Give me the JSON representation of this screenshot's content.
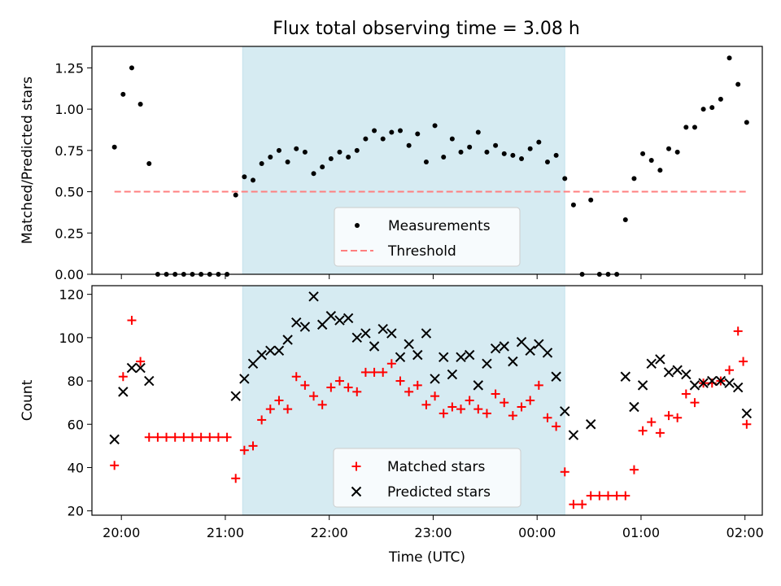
{
  "title": "Flux total observing time = 3.08 h",
  "colors": {
    "band": "#add8e6",
    "measurement": "#000000",
    "threshold": "#ff7f7f",
    "matched": "#ff0000",
    "predicted": "#000000"
  },
  "chart_data": [
    {
      "type": "scatter",
      "ylabel": "Matched/Predicted stars",
      "ylim": [
        0,
        1.38
      ],
      "y_ticks": [
        0.0,
        0.25,
        0.5,
        0.75,
        1.0,
        1.25
      ],
      "y_tick_labels": [
        "0.00",
        "0.25",
        "0.50",
        "0.75",
        "1.00",
        "1.25"
      ],
      "xlim": [
        "19:43",
        "02:10"
      ],
      "shaded_span": [
        "21:10",
        "00:16"
      ],
      "legend_position": "lower center",
      "threshold": 0.5,
      "threshold_span": [
        "19:56",
        "02:02"
      ],
      "series": [
        {
          "name": "Measurements",
          "marker": "dot",
          "points": [
            [
              "19:56",
              0.77
            ],
            [
              "20:01",
              1.09
            ],
            [
              "20:06",
              1.25
            ],
            [
              "20:11",
              1.03
            ],
            [
              "20:16",
              0.67
            ],
            [
              "20:21",
              0.0
            ],
            [
              "20:26",
              0.0
            ],
            [
              "20:31",
              0.0
            ],
            [
              "20:36",
              0.0
            ],
            [
              "20:41",
              0.0
            ],
            [
              "20:46",
              0.0
            ],
            [
              "20:51",
              0.0
            ],
            [
              "20:56",
              0.0
            ],
            [
              "21:01",
              0.0
            ],
            [
              "21:06",
              0.48
            ],
            [
              "21:11",
              0.59
            ],
            [
              "21:16",
              0.57
            ],
            [
              "21:21",
              0.67
            ],
            [
              "21:26",
              0.71
            ],
            [
              "21:31",
              0.75
            ],
            [
              "21:36",
              0.68
            ],
            [
              "21:41",
              0.76
            ],
            [
              "21:46",
              0.74
            ],
            [
              "21:51",
              0.61
            ],
            [
              "21:56",
              0.65
            ],
            [
              "22:01",
              0.7
            ],
            [
              "22:06",
              0.74
            ],
            [
              "22:11",
              0.71
            ],
            [
              "22:16",
              0.75
            ],
            [
              "22:21",
              0.82
            ],
            [
              "22:26",
              0.87
            ],
            [
              "22:31",
              0.82
            ],
            [
              "22:36",
              0.86
            ],
            [
              "22:41",
              0.87
            ],
            [
              "22:46",
              0.78
            ],
            [
              "22:51",
              0.85
            ],
            [
              "22:56",
              0.68
            ],
            [
              "23:01",
              0.9
            ],
            [
              "23:06",
              0.71
            ],
            [
              "23:11",
              0.82
            ],
            [
              "23:16",
              0.74
            ],
            [
              "23:21",
              0.77
            ],
            [
              "23:26",
              0.86
            ],
            [
              "23:31",
              0.74
            ],
            [
              "23:36",
              0.78
            ],
            [
              "23:41",
              0.73
            ],
            [
              "23:46",
              0.72
            ],
            [
              "23:51",
              0.7
            ],
            [
              "23:56",
              0.76
            ],
            [
              "00:01",
              0.8
            ],
            [
              "00:06",
              0.68
            ],
            [
              "00:11",
              0.72
            ],
            [
              "00:16",
              0.58
            ],
            [
              "00:21",
              0.42
            ],
            [
              "00:26",
              0.0
            ],
            [
              "00:31",
              0.45
            ],
            [
              "00:36",
              0.0
            ],
            [
              "00:41",
              0.0
            ],
            [
              "00:46",
              0.0
            ],
            [
              "00:51",
              0.33
            ],
            [
              "00:56",
              0.58
            ],
            [
              "01:01",
              0.73
            ],
            [
              "01:06",
              0.69
            ],
            [
              "01:11",
              0.63
            ],
            [
              "01:16",
              0.76
            ],
            [
              "01:21",
              0.74
            ],
            [
              "01:26",
              0.89
            ],
            [
              "01:31",
              0.89
            ],
            [
              "01:36",
              1.0
            ],
            [
              "01:41",
              1.01
            ],
            [
              "01:46",
              1.06
            ],
            [
              "01:51",
              1.31
            ],
            [
              "01:56",
              1.15
            ],
            [
              "02:01",
              0.92
            ]
          ]
        },
        {
          "name": "Threshold",
          "marker": "dashed-line"
        }
      ]
    },
    {
      "type": "scatter",
      "xlabel": "Time (UTC)",
      "ylabel": "Count",
      "ylim": [
        18,
        124
      ],
      "y_ticks": [
        20,
        40,
        60,
        80,
        100,
        120
      ],
      "y_tick_labels": [
        "20",
        "40",
        "60",
        "80",
        "100",
        "120"
      ],
      "x_ticks": [
        "20:00",
        "21:00",
        "22:00",
        "23:00",
        "00:00",
        "01:00",
        "02:00"
      ],
      "xlim": [
        "19:43",
        "02:10"
      ],
      "shaded_span": [
        "21:10",
        "00:16"
      ],
      "legend_position": "lower center",
      "series": [
        {
          "name": "Matched stars",
          "marker": "plus",
          "points": [
            [
              "19:56",
              41
            ],
            [
              "20:01",
              82
            ],
            [
              "20:06",
              108
            ],
            [
              "20:11",
              89
            ],
            [
              "20:16",
              54
            ],
            [
              "20:21",
              54
            ],
            [
              "20:26",
              54
            ],
            [
              "20:31",
              54
            ],
            [
              "20:36",
              54
            ],
            [
              "20:41",
              54
            ],
            [
              "20:46",
              54
            ],
            [
              "20:51",
              54
            ],
            [
              "20:56",
              54
            ],
            [
              "21:01",
              54
            ],
            [
              "21:06",
              35
            ],
            [
              "21:11",
              48
            ],
            [
              "21:16",
              50
            ],
            [
              "21:21",
              62
            ],
            [
              "21:26",
              67
            ],
            [
              "21:31",
              71
            ],
            [
              "21:36",
              67
            ],
            [
              "21:41",
              82
            ],
            [
              "21:46",
              78
            ],
            [
              "21:51",
              73
            ],
            [
              "21:56",
              69
            ],
            [
              "22:01",
              77
            ],
            [
              "22:06",
              80
            ],
            [
              "22:11",
              77
            ],
            [
              "22:16",
              75
            ],
            [
              "22:21",
              84
            ],
            [
              "22:26",
              84
            ],
            [
              "22:31",
              84
            ],
            [
              "22:36",
              88
            ],
            [
              "22:41",
              80
            ],
            [
              "22:46",
              75
            ],
            [
              "22:51",
              78
            ],
            [
              "22:56",
              69
            ],
            [
              "23:01",
              73
            ],
            [
              "23:06",
              65
            ],
            [
              "23:11",
              68
            ],
            [
              "23:16",
              67
            ],
            [
              "23:21",
              71
            ],
            [
              "23:26",
              67
            ],
            [
              "23:31",
              65
            ],
            [
              "23:36",
              74
            ],
            [
              "23:41",
              70
            ],
            [
              "23:46",
              64
            ],
            [
              "23:51",
              68
            ],
            [
              "23:56",
              71
            ],
            [
              "00:01",
              78
            ],
            [
              "00:06",
              63
            ],
            [
              "00:11",
              59
            ],
            [
              "00:16",
              38
            ],
            [
              "00:21",
              23
            ],
            [
              "00:26",
              23
            ],
            [
              "00:31",
              27
            ],
            [
              "00:36",
              27
            ],
            [
              "00:41",
              27
            ],
            [
              "00:46",
              27
            ],
            [
              "00:51",
              27
            ],
            [
              "00:56",
              39
            ],
            [
              "01:01",
              57
            ],
            [
              "01:06",
              61
            ],
            [
              "01:11",
              56
            ],
            [
              "01:16",
              64
            ],
            [
              "01:21",
              63
            ],
            [
              "01:26",
              74
            ],
            [
              "01:31",
              70
            ],
            [
              "01:36",
              79
            ],
            [
              "01:41",
              79
            ],
            [
              "01:46",
              80
            ],
            [
              "01:51",
              85
            ],
            [
              "01:56",
              103
            ],
            [
              "01:59",
              89
            ],
            [
              "02:01",
              60
            ]
          ]
        },
        {
          "name": "Predicted stars",
          "marker": "x",
          "points": [
            [
              "19:56",
              53
            ],
            [
              "20:01",
              75
            ],
            [
              "20:06",
              86
            ],
            [
              "20:11",
              86
            ],
            [
              "20:16",
              80
            ],
            [
              "21:06",
              73
            ],
            [
              "21:11",
              81
            ],
            [
              "21:16",
              88
            ],
            [
              "21:21",
              92
            ],
            [
              "21:26",
              94
            ],
            [
              "21:31",
              94
            ],
            [
              "21:36",
              99
            ],
            [
              "21:41",
              107
            ],
            [
              "21:46",
              105
            ],
            [
              "21:51",
              119
            ],
            [
              "21:56",
              106
            ],
            [
              "22:01",
              110
            ],
            [
              "22:06",
              108
            ],
            [
              "22:11",
              109
            ],
            [
              "22:16",
              100
            ],
            [
              "22:21",
              102
            ],
            [
              "22:26",
              96
            ],
            [
              "22:31",
              104
            ],
            [
              "22:36",
              102
            ],
            [
              "22:41",
              91
            ],
            [
              "22:46",
              97
            ],
            [
              "22:51",
              92
            ],
            [
              "22:56",
              102
            ],
            [
              "23:01",
              81
            ],
            [
              "23:06",
              91
            ],
            [
              "23:11",
              83
            ],
            [
              "23:16",
              91
            ],
            [
              "23:21",
              92
            ],
            [
              "23:26",
              78
            ],
            [
              "23:31",
              88
            ],
            [
              "23:36",
              95
            ],
            [
              "23:41",
              96
            ],
            [
              "23:46",
              89
            ],
            [
              "23:51",
              98
            ],
            [
              "23:56",
              94
            ],
            [
              "00:01",
              97
            ],
            [
              "00:06",
              93
            ],
            [
              "00:11",
              82
            ],
            [
              "00:16",
              66
            ],
            [
              "00:21",
              55
            ],
            [
              "00:31",
              60
            ],
            [
              "00:51",
              82
            ],
            [
              "00:56",
              68
            ],
            [
              "01:01",
              78
            ],
            [
              "01:06",
              88
            ],
            [
              "01:11",
              90
            ],
            [
              "01:16",
              84
            ],
            [
              "01:21",
              85
            ],
            [
              "01:26",
              83
            ],
            [
              "01:31",
              78
            ],
            [
              "01:36",
              79
            ],
            [
              "01:41",
              80
            ],
            [
              "01:46",
              80
            ],
            [
              "01:51",
              79
            ],
            [
              "01:56",
              77
            ],
            [
              "02:01",
              65
            ]
          ]
        }
      ]
    }
  ]
}
